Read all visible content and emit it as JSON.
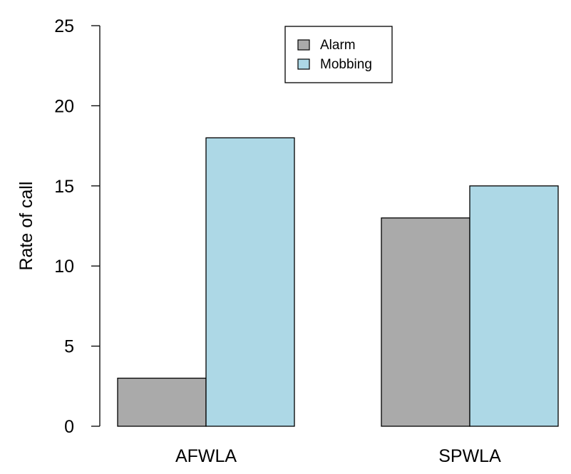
{
  "chart_data": {
    "type": "bar",
    "ylabel": "Rate of call",
    "ylim": [
      0,
      25
    ],
    "yticks": [
      0,
      5,
      10,
      15,
      20,
      25
    ],
    "grid": false,
    "legend_position": "top-center",
    "categories": [
      "AFWLA",
      "SPWLA"
    ],
    "series": [
      {
        "name": "Alarm",
        "color": "#aaaaaa",
        "values": [
          3,
          13
        ]
      },
      {
        "name": "Mobbing",
        "color": "#add8e6",
        "values": [
          18,
          15
        ]
      }
    ]
  }
}
